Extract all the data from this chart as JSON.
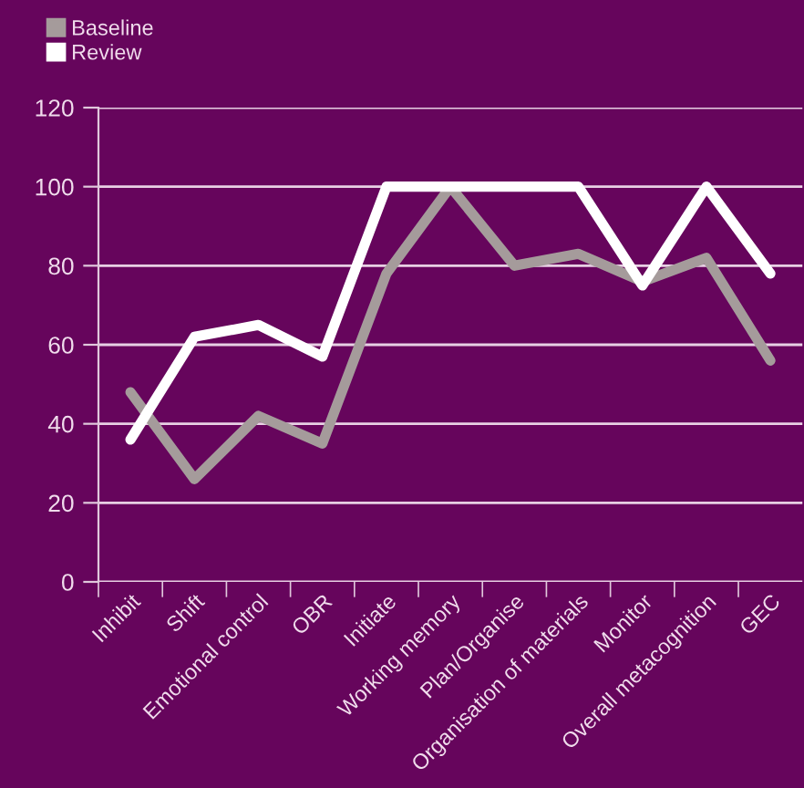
{
  "chart_data": {
    "type": "line",
    "categories": [
      "Inhibit",
      "Shift",
      "Emotional control",
      "OBR",
      "Initiate",
      "Working memory",
      "Plan/Organise",
      "Organisation of materials",
      "Monitor",
      "Overall metacognition",
      "GEC"
    ],
    "series": [
      {
        "name": "Baseline",
        "color": "#a59b9b",
        "values": [
          48,
          26,
          42,
          35,
          78,
          100,
          80,
          83,
          76,
          82,
          56
        ]
      },
      {
        "name": "Review",
        "color": "#ffffff",
        "values": [
          36,
          62,
          65,
          57,
          100,
          100,
          100,
          100,
          75,
          100,
          78
        ]
      }
    ],
    "ylim": [
      0,
      120
    ],
    "yticks": [
      0,
      20,
      40,
      60,
      80,
      100,
      120
    ],
    "grid": "y",
    "legend": "top left",
    "marker": "none",
    "line_style": "solid"
  }
}
